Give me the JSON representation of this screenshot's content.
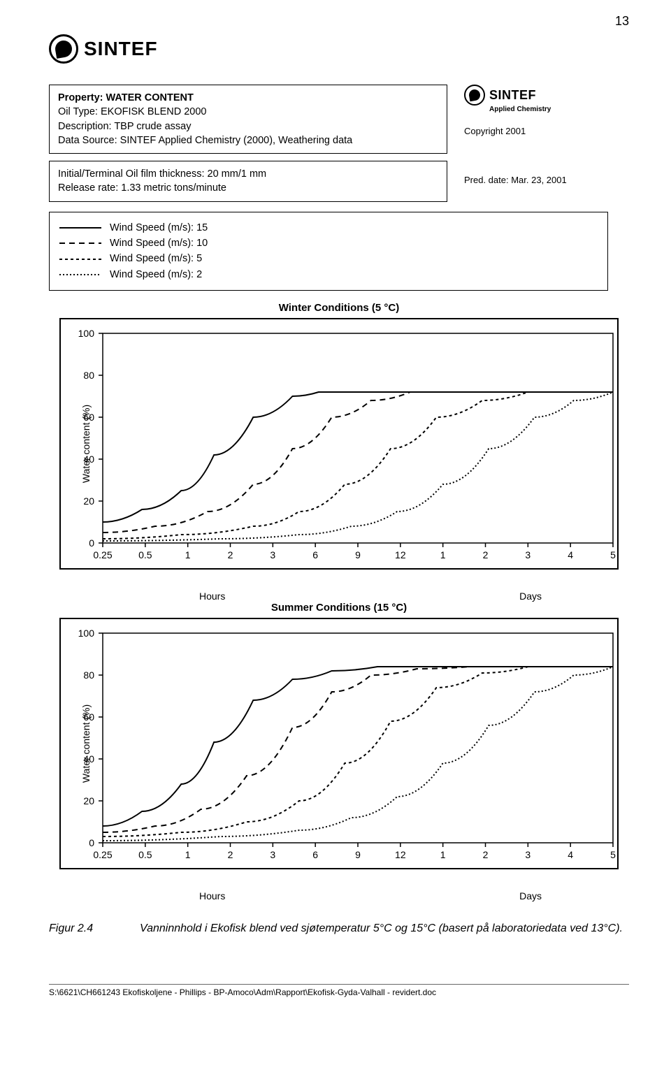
{
  "page_number": "13",
  "logo_text": "SINTEF",
  "small_logo_sub": "Applied Chemistry",
  "property_box": {
    "l1": "Property: WATER CONTENT",
    "l2": "Oil Type: EKOFISK BLEND 2000",
    "l3": "Description: TBP crude assay",
    "l4": "Data Source: SINTEF Applied Chemistry (2000), Weathering data"
  },
  "copyright": "Copyright 2001",
  "pred_date": "Pred. date: Mar. 23, 2001",
  "init_box": {
    "l1": "Initial/Terminal Oil film thickness: 20 mm/1 mm",
    "l2": "Release rate: 1.33 metric tons/minute"
  },
  "legend": [
    {
      "label": "Wind Speed (m/s): 15",
      "dash": "solid"
    },
    {
      "label": "Wind Speed (m/s): 10",
      "dash": "8,6"
    },
    {
      "label": "Wind Speed (m/s): 5",
      "dash": "4,4"
    },
    {
      "label": "Wind Speed (m/s): 2",
      "dash": "2,3"
    }
  ],
  "ylabel": "Water content (%)",
  "charts": {
    "winter": {
      "title": "Winter Conditions (5 °C)",
      "background": "#ffffff",
      "border_color": "#000000",
      "line_color": "#000000",
      "line_width": 2,
      "yticks": [
        0,
        20,
        40,
        60,
        80,
        100
      ],
      "ylim": [
        0,
        100
      ],
      "xticks_labels": [
        "0.25",
        "0.5",
        "1",
        "2",
        "3",
        "6",
        "9",
        "12",
        "1",
        "2",
        "3",
        "4",
        "5"
      ],
      "xsub_left": "Hours",
      "xsub_right": "Days",
      "plateau": 72,
      "series": [
        {
          "dash": "none",
          "pts": [
            [
              0,
              10
            ],
            [
              60,
              16
            ],
            [
              120,
              25
            ],
            [
              170,
              42
            ],
            [
              230,
              60
            ],
            [
              290,
              70
            ],
            [
              330,
              72
            ],
            [
              420,
              72
            ],
            [
              780,
              72
            ]
          ]
        },
        {
          "dash": "8,6",
          "pts": [
            [
              0,
              5
            ],
            [
              80,
              8
            ],
            [
              160,
              15
            ],
            [
              230,
              28
            ],
            [
              290,
              45
            ],
            [
              350,
              60
            ],
            [
              410,
              68
            ],
            [
              470,
              72
            ],
            [
              780,
              72
            ]
          ]
        },
        {
          "dash": "4,4",
          "pts": [
            [
              0,
              2
            ],
            [
              120,
              4
            ],
            [
              230,
              8
            ],
            [
              300,
              15
            ],
            [
              370,
              28
            ],
            [
              440,
              45
            ],
            [
              510,
              60
            ],
            [
              580,
              68
            ],
            [
              650,
              72
            ],
            [
              780,
              72
            ]
          ]
        },
        {
          "dash": "2,3",
          "pts": [
            [
              0,
              1
            ],
            [
              180,
              2
            ],
            [
              300,
              4
            ],
            [
              380,
              8
            ],
            [
              450,
              15
            ],
            [
              520,
              28
            ],
            [
              590,
              45
            ],
            [
              660,
              60
            ],
            [
              720,
              68
            ],
            [
              780,
              72
            ]
          ]
        }
      ]
    },
    "summer": {
      "title": "Summer Conditions (15 °C)",
      "background": "#ffffff",
      "border_color": "#000000",
      "line_color": "#000000",
      "line_width": 2,
      "yticks": [
        0,
        20,
        40,
        60,
        80,
        100
      ],
      "ylim": [
        0,
        100
      ],
      "xticks_labels": [
        "0.25",
        "0.5",
        "1",
        "2",
        "3",
        "6",
        "9",
        "12",
        "1",
        "2",
        "3",
        "4",
        "5"
      ],
      "xsub_left": "Hours",
      "xsub_right": "Days",
      "plateau": 84,
      "series": [
        {
          "dash": "none",
          "pts": [
            [
              0,
              8
            ],
            [
              60,
              15
            ],
            [
              120,
              28
            ],
            [
              170,
              48
            ],
            [
              230,
              68
            ],
            [
              290,
              78
            ],
            [
              350,
              82
            ],
            [
              420,
              84
            ],
            [
              780,
              84
            ]
          ]
        },
        {
          "dash": "8,6",
          "pts": [
            [
              0,
              5
            ],
            [
              80,
              8
            ],
            [
              150,
              16
            ],
            [
              220,
              32
            ],
            [
              290,
              55
            ],
            [
              350,
              72
            ],
            [
              410,
              80
            ],
            [
              480,
              83
            ],
            [
              560,
              84
            ],
            [
              780,
              84
            ]
          ]
        },
        {
          "dash": "4,4",
          "pts": [
            [
              0,
              3
            ],
            [
              120,
              5
            ],
            [
              220,
              10
            ],
            [
              300,
              20
            ],
            [
              370,
              38
            ],
            [
              440,
              58
            ],
            [
              510,
              74
            ],
            [
              580,
              81
            ],
            [
              650,
              84
            ],
            [
              780,
              84
            ]
          ]
        },
        {
          "dash": "2,3",
          "pts": [
            [
              0,
              1
            ],
            [
              180,
              3
            ],
            [
              300,
              6
            ],
            [
              380,
              12
            ],
            [
              450,
              22
            ],
            [
              520,
              38
            ],
            [
              590,
              56
            ],
            [
              660,
              72
            ],
            [
              720,
              80
            ],
            [
              780,
              84
            ]
          ]
        }
      ]
    }
  },
  "caption": {
    "fig": "Figur 2.4",
    "text": "Vanninnhold i Ekofisk blend ved sjøtemperatur 5°C og 15°C (basert på laboratoriedata ved 13°C)."
  },
  "footer": "S:\\6621\\CH661243 Ekofiskoljene - Phillips - BP-Amoco\\Adm\\Rapport\\Ekofisk-Gyda-Valhall - revidert.doc"
}
